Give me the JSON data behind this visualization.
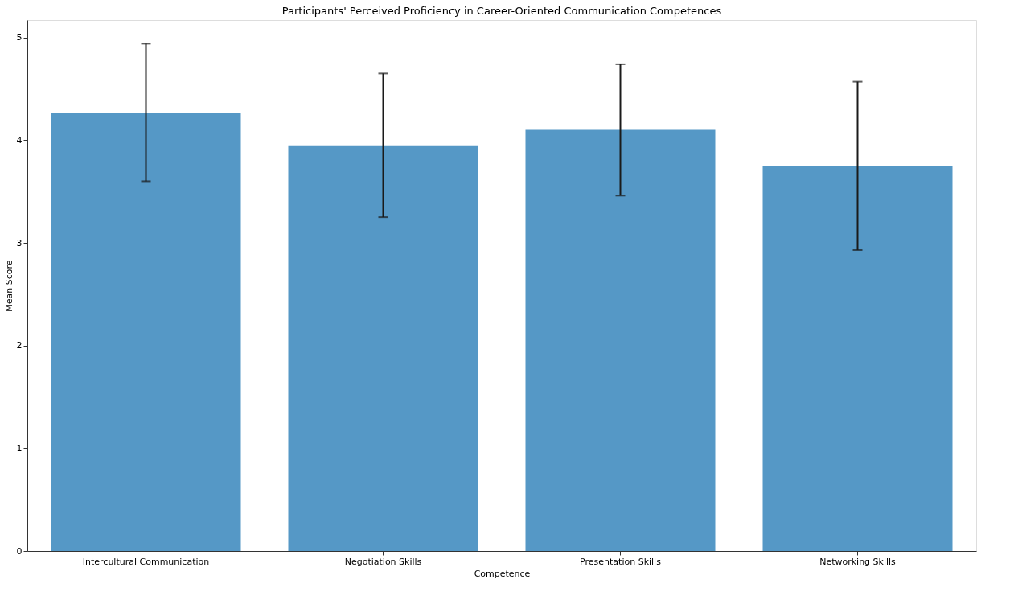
{
  "chart_data": {
    "type": "bar",
    "title": "Participants' Perceived Proficiency in Career-Oriented Communication Competences",
    "xlabel": "Competence",
    "ylabel": "Mean Score",
    "categories": [
      "Intercultural Communication",
      "Negotiation Skills",
      "Presentation Skills",
      "Networking Skills"
    ],
    "values": [
      4.27,
      3.95,
      4.1,
      3.75
    ],
    "errors": [
      0.67,
      0.7,
      0.64,
      0.82
    ],
    "color": "#5598c6",
    "ylim": [
      0,
      5.17
    ],
    "yticks": [
      0,
      1,
      2,
      3,
      4,
      5
    ],
    "grid": false
  }
}
